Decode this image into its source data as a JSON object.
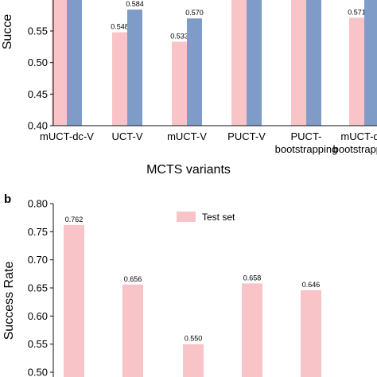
{
  "chart_data": [
    {
      "panel": "",
      "type": "bar",
      "ylabel": "Succe",
      "xlabel": "MCTS variants",
      "ylim": [
        0.4,
        0.61
      ],
      "yticks": [
        "0.40",
        "0.45",
        "0.50",
        "0.55"
      ],
      "categories": [
        [
          "mUCT-dc-V"
        ],
        [
          "UCT-V"
        ],
        [
          "mUCT-V"
        ],
        [
          "PUCT-V"
        ],
        [
          "PUCT-",
          "bootstrapping"
        ],
        [
          "mUCT-dc-",
          "bootstrapping"
        ]
      ],
      "series": [
        {
          "color": "#f8c4c8",
          "values": [
            0.61,
            0.548,
            0.533,
            0.61,
            0.61,
            0.571
          ],
          "labels": [
            null,
            "0.548",
            "0.533",
            null,
            null,
            "0.571"
          ]
        },
        {
          "color": "#7f9cc9",
          "values": [
            0.61,
            0.584,
            0.57,
            0.61,
            0.61,
            0.61
          ],
          "labels": [
            null,
            "0.584",
            "0.570",
            null,
            null,
            null
          ]
        }
      ],
      "grid": false
    },
    {
      "panel": "b",
      "type": "bar",
      "ylabel": "Success Rate",
      "ylim": [
        0.5,
        0.8
      ],
      "yticks": [
        "0.50",
        "0.55",
        "0.60",
        "0.65",
        "0.70",
        "0.75",
        "0.80"
      ],
      "categories": [
        "",
        "",
        "",
        "",
        ""
      ],
      "series": [
        {
          "name": "Test set",
          "color": "#f8c4c8",
          "values": [
            0.762,
            0.656,
            0.55,
            0.658,
            0.646
          ],
          "labels": [
            "0.762",
            "0.656",
            "0.550",
            "0.658",
            "0.646"
          ]
        }
      ],
      "legend": "top-center",
      "grid": false
    }
  ]
}
